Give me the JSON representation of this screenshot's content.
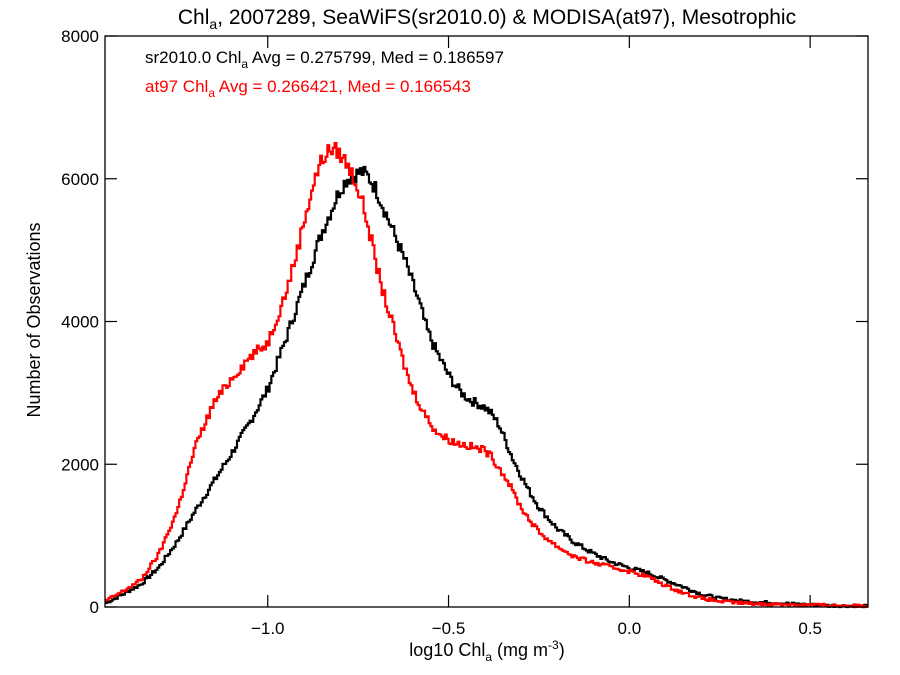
{
  "chart_data": {
    "type": "line",
    "title": {
      "pre": "Chl",
      "sub": "a",
      "post": ", 2007289, SeaWiFS(sr2010.0) & MODISA(at97), Mesotrophic"
    },
    "xlabel": {
      "pre": "log10 Chl",
      "sub": "a",
      "mid": " (mg m",
      "sup": "-3",
      "post": ")"
    },
    "ylabel": "Number of Observations",
    "xlim": [
      -1.45,
      0.66
    ],
    "ylim": [
      0,
      8000
    ],
    "x_ticks": [
      -1.0,
      -0.5,
      0.0,
      0.5
    ],
    "x_tick_labels": [
      "−1.0",
      "−0.5",
      "0.0",
      "0.5"
    ],
    "y_ticks": [
      0,
      2000,
      4000,
      6000,
      8000
    ],
    "y_tick_labels": [
      "0",
      "2000",
      "4000",
      "6000",
      "8000"
    ],
    "grid": false,
    "step": true,
    "annotations": [
      {
        "pre": "sr2010.0 Chl",
        "sub": "a",
        "post": " Avg = 0.275799, Med = 0.186597",
        "color": "#000000"
      },
      {
        "pre": "at97 Chl",
        "sub": "a",
        "post": " Avg = 0.266421, Med = 0.166543",
        "color": "#ff0000"
      }
    ],
    "series": [
      {
        "color": "#000000",
        "x": [
          -1.45,
          -1.4,
          -1.35,
          -1.3,
          -1.25,
          -1.2,
          -1.15,
          -1.1,
          -1.05,
          -1.0,
          -0.95,
          -0.9,
          -0.85,
          -0.8,
          -0.78,
          -0.76,
          -0.74,
          -0.72,
          -0.7,
          -0.68,
          -0.66,
          -0.64,
          -0.62,
          -0.6,
          -0.58,
          -0.56,
          -0.54,
          -0.52,
          -0.5,
          -0.48,
          -0.46,
          -0.44,
          -0.42,
          -0.4,
          -0.38,
          -0.36,
          -0.34,
          -0.32,
          -0.3,
          -0.28,
          -0.25,
          -0.2,
          -0.15,
          -0.1,
          -0.05,
          0.0,
          0.05,
          0.1,
          0.15,
          0.2,
          0.25,
          0.3,
          0.35,
          0.4,
          0.45,
          0.5,
          0.55,
          0.6,
          0.66
        ],
        "y": [
          50,
          180,
          320,
          560,
          920,
          1350,
          1750,
          2150,
          2580,
          3050,
          3750,
          4500,
          5250,
          5850,
          6000,
          6050,
          6100,
          6020,
          5850,
          5600,
          5350,
          5100,
          4850,
          4550,
          4250,
          3900,
          3650,
          3450,
          3250,
          3100,
          2980,
          2900,
          2850,
          2800,
          2700,
          2550,
          2300,
          2050,
          1850,
          1650,
          1400,
          1100,
          900,
          750,
          630,
          550,
          480,
          380,
          280,
          180,
          120,
          90,
          70,
          60,
          45,
          30,
          20,
          15,
          10
        ]
      },
      {
        "color": "#ff0000",
        "x": [
          -1.45,
          -1.4,
          -1.35,
          -1.3,
          -1.25,
          -1.2,
          -1.15,
          -1.1,
          -1.05,
          -1.0,
          -0.95,
          -0.92,
          -0.9,
          -0.88,
          -0.86,
          -0.84,
          -0.82,
          -0.8,
          -0.78,
          -0.76,
          -0.74,
          -0.72,
          -0.7,
          -0.68,
          -0.66,
          -0.64,
          -0.62,
          -0.6,
          -0.58,
          -0.56,
          -0.54,
          -0.52,
          -0.5,
          -0.48,
          -0.46,
          -0.44,
          -0.42,
          -0.4,
          -0.38,
          -0.36,
          -0.34,
          -0.32,
          -0.3,
          -0.28,
          -0.25,
          -0.2,
          -0.15,
          -0.1,
          -0.05,
          0.0,
          0.05,
          0.1,
          0.15,
          0.2,
          0.25,
          0.3,
          0.35,
          0.4,
          0.45,
          0.5,
          0.55,
          0.6,
          0.66
        ],
        "y": [
          80,
          220,
          380,
          750,
          1350,
          2250,
          2850,
          3200,
          3500,
          3700,
          4400,
          4950,
          5400,
          5800,
          6150,
          6350,
          6420,
          6350,
          6200,
          6000,
          5700,
          5300,
          4800,
          4400,
          4050,
          3700,
          3350,
          3050,
          2850,
          2650,
          2500,
          2400,
          2350,
          2300,
          2280,
          2250,
          2220,
          2200,
          2100,
          1950,
          1800,
          1600,
          1400,
          1250,
          1050,
          850,
          700,
          620,
          560,
          500,
          430,
          300,
          200,
          120,
          80,
          60,
          45,
          40,
          35,
          30,
          25,
          20,
          10
        ]
      }
    ]
  }
}
